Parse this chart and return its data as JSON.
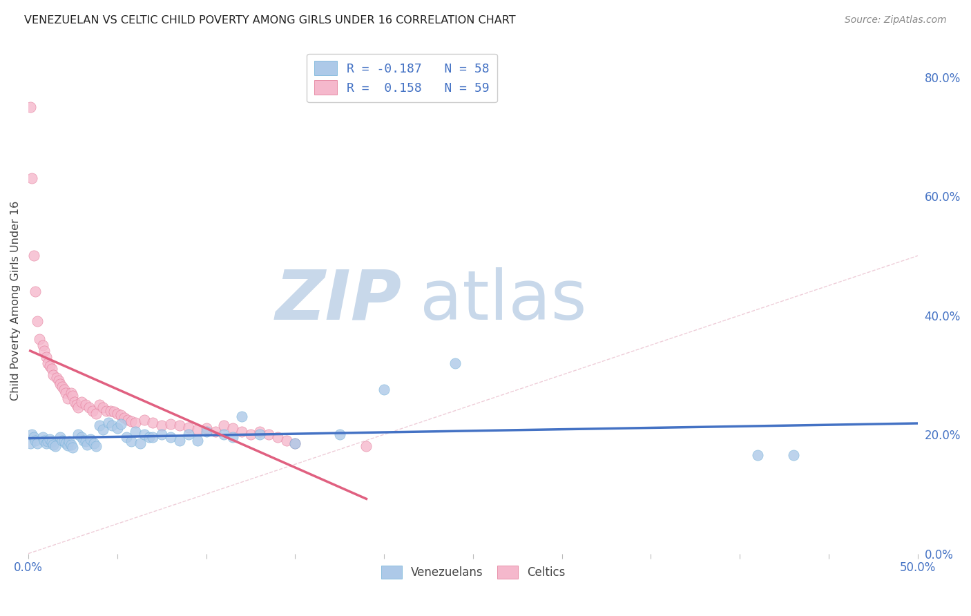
{
  "title": "VENEZUELAN VS CELTIC CHILD POVERTY AMONG GIRLS UNDER 16 CORRELATION CHART",
  "source": "Source: ZipAtlas.com",
  "ylabel": "Child Poverty Among Girls Under 16",
  "xlim": [
    0.0,
    0.5
  ],
  "ylim": [
    0.0,
    0.85
  ],
  "xticks": [
    0.0,
    0.05,
    0.1,
    0.15,
    0.2,
    0.25,
    0.3,
    0.35,
    0.4,
    0.45,
    0.5
  ],
  "yticks_right": [
    0.0,
    0.2,
    0.4,
    0.6,
    0.8
  ],
  "ytick_labels_right": [
    "0.0%",
    "20.0%",
    "40.0%",
    "60.0%",
    "80.0%"
  ],
  "venezuelan_color": "#adc9e8",
  "celtic_color": "#f5b8cc",
  "venezuelan_edge_color": "#6baed6",
  "celtic_edge_color": "#e07090",
  "venezuelan_line_color": "#4472c4",
  "celtic_line_color": "#e06080",
  "diagonal_color": "#cccccc",
  "watermark_color": "#d0dce8",
  "legend_text_color": "#4472c4",
  "venezuelan_x": [
    0.001,
    0.002,
    0.003,
    0.004,
    0.005,
    0.008,
    0.009,
    0.01,
    0.011,
    0.012,
    0.013,
    0.014,
    0.015,
    0.018,
    0.019,
    0.02,
    0.021,
    0.022,
    0.023,
    0.024,
    0.025,
    0.028,
    0.03,
    0.031,
    0.032,
    0.033,
    0.035,
    0.037,
    0.038,
    0.04,
    0.042,
    0.045,
    0.047,
    0.05,
    0.052,
    0.055,
    0.058,
    0.06,
    0.063,
    0.065,
    0.068,
    0.07,
    0.075,
    0.08,
    0.085,
    0.09,
    0.095,
    0.1,
    0.11,
    0.115,
    0.12,
    0.13,
    0.15,
    0.175,
    0.2,
    0.24,
    0.41,
    0.43
  ],
  "venezuelan_y": [
    0.185,
    0.2,
    0.195,
    0.19,
    0.185,
    0.195,
    0.19,
    0.185,
    0.188,
    0.192,
    0.187,
    0.183,
    0.18,
    0.195,
    0.19,
    0.188,
    0.185,
    0.182,
    0.188,
    0.183,
    0.178,
    0.2,
    0.195,
    0.19,
    0.188,
    0.183,
    0.192,
    0.185,
    0.18,
    0.215,
    0.208,
    0.22,
    0.215,
    0.21,
    0.218,
    0.195,
    0.188,
    0.205,
    0.185,
    0.2,
    0.195,
    0.195,
    0.2,
    0.195,
    0.19,
    0.2,
    0.19,
    0.205,
    0.2,
    0.195,
    0.23,
    0.2,
    0.185,
    0.2,
    0.275,
    0.32,
    0.165,
    0.165
  ],
  "celtic_x": [
    0.001,
    0.002,
    0.003,
    0.004,
    0.005,
    0.006,
    0.008,
    0.009,
    0.01,
    0.011,
    0.012,
    0.013,
    0.014,
    0.016,
    0.017,
    0.018,
    0.019,
    0.02,
    0.021,
    0.022,
    0.024,
    0.025,
    0.026,
    0.027,
    0.028,
    0.03,
    0.032,
    0.034,
    0.036,
    0.038,
    0.04,
    0.042,
    0.044,
    0.046,
    0.048,
    0.05,
    0.052,
    0.054,
    0.056,
    0.058,
    0.06,
    0.065,
    0.07,
    0.075,
    0.08,
    0.085,
    0.09,
    0.095,
    0.1,
    0.105,
    0.11,
    0.115,
    0.12,
    0.125,
    0.13,
    0.135,
    0.14,
    0.145,
    0.15,
    0.19
  ],
  "celtic_y": [
    0.75,
    0.63,
    0.5,
    0.44,
    0.39,
    0.36,
    0.35,
    0.34,
    0.33,
    0.32,
    0.315,
    0.31,
    0.3,
    0.295,
    0.29,
    0.285,
    0.28,
    0.275,
    0.27,
    0.26,
    0.27,
    0.265,
    0.255,
    0.25,
    0.245,
    0.255,
    0.25,
    0.245,
    0.24,
    0.235,
    0.25,
    0.245,
    0.24,
    0.24,
    0.238,
    0.235,
    0.232,
    0.228,
    0.225,
    0.222,
    0.22,
    0.225,
    0.22,
    0.215,
    0.218,
    0.215,
    0.212,
    0.208,
    0.21,
    0.205,
    0.215,
    0.21,
    0.205,
    0.2,
    0.205,
    0.2,
    0.195,
    0.19,
    0.185,
    0.18
  ]
}
